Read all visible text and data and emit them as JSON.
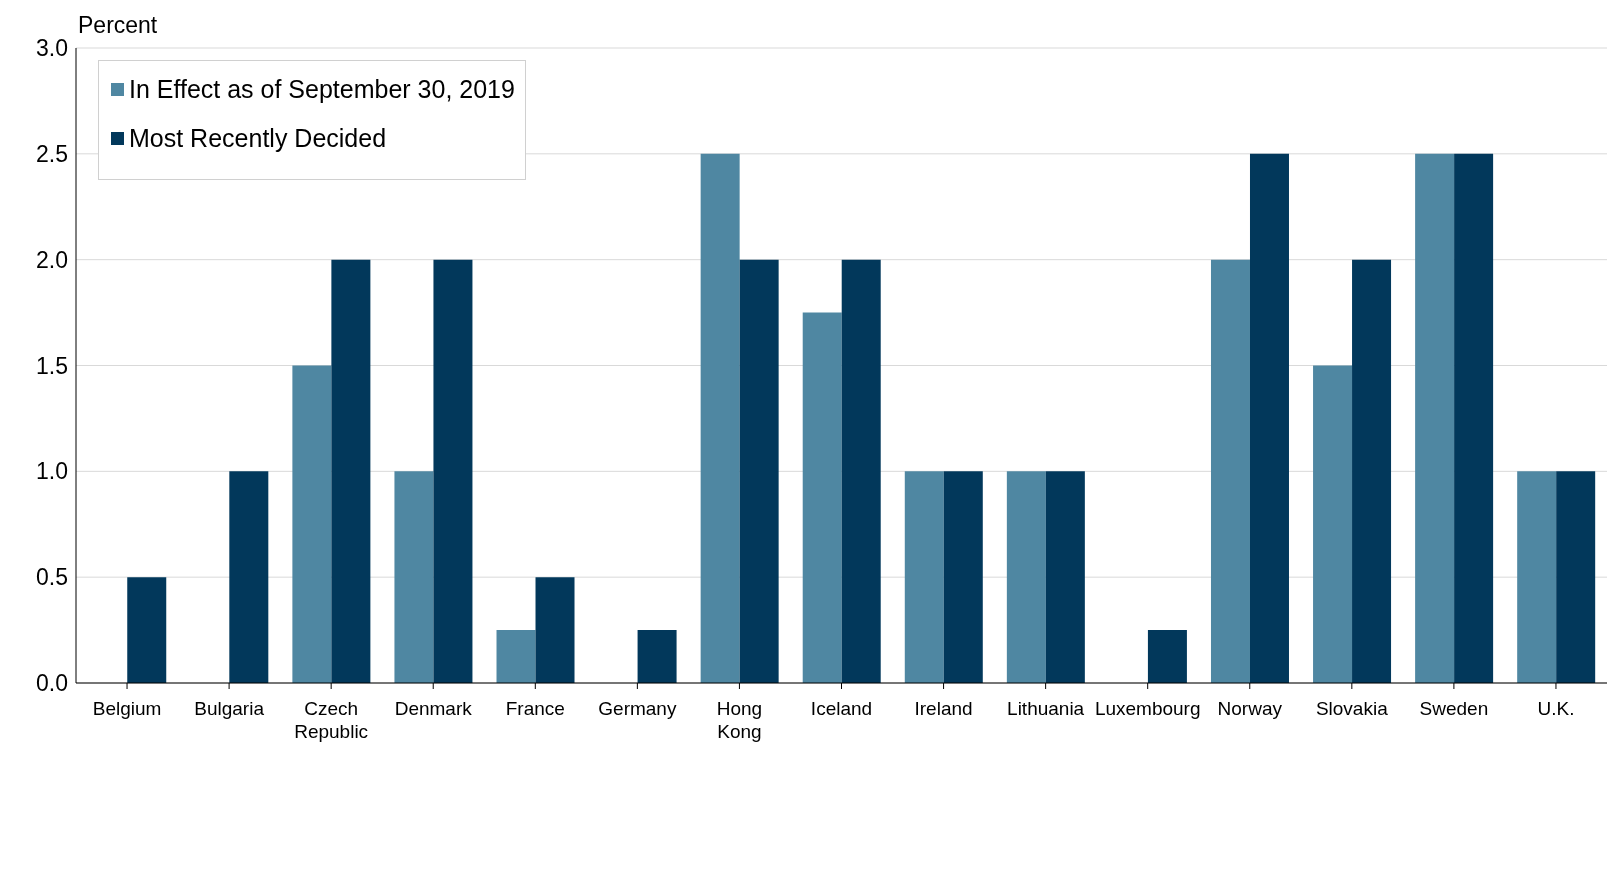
{
  "chart_data": {
    "type": "bar",
    "ylabel": "Percent",
    "categories": [
      "Belgium",
      "Bulgaria",
      "Czech\nRepublic",
      "Denmark",
      "France",
      "Germany",
      "Hong\nKong",
      "Iceland",
      "Ireland",
      "Lithuania",
      "Luxembourg",
      "Norway",
      "Slovakia",
      "Sweden",
      "U.K."
    ],
    "series": [
      {
        "name": "In Effect as of September 30, 2019",
        "color": "#4f87a2",
        "values": [
          0,
          0,
          1.5,
          1,
          0.25,
          0,
          2.5,
          1.75,
          1,
          1,
          0,
          2,
          1.5,
          2.5,
          1
        ]
      },
      {
        "name": "Most Recently Decided",
        "color": "#02385b",
        "values": [
          0.5,
          1,
          2,
          2,
          0.5,
          0.25,
          2,
          2,
          1,
          1,
          0.25,
          2.5,
          2,
          2.5,
          1
        ]
      }
    ],
    "ylim": [
      0,
      3
    ],
    "yticks": [
      {
        "value": 0,
        "label": "0.0"
      },
      {
        "value": 0.5,
        "label": "0.5"
      },
      {
        "value": 1,
        "label": "1.0"
      },
      {
        "value": 1.5,
        "label": "1.5"
      },
      {
        "value": 2,
        "label": "2.0"
      },
      {
        "value": 2.5,
        "label": "2.5"
      },
      {
        "value": 3,
        "label": "3.0"
      }
    ],
    "grid": "y",
    "legend": "top left"
  }
}
